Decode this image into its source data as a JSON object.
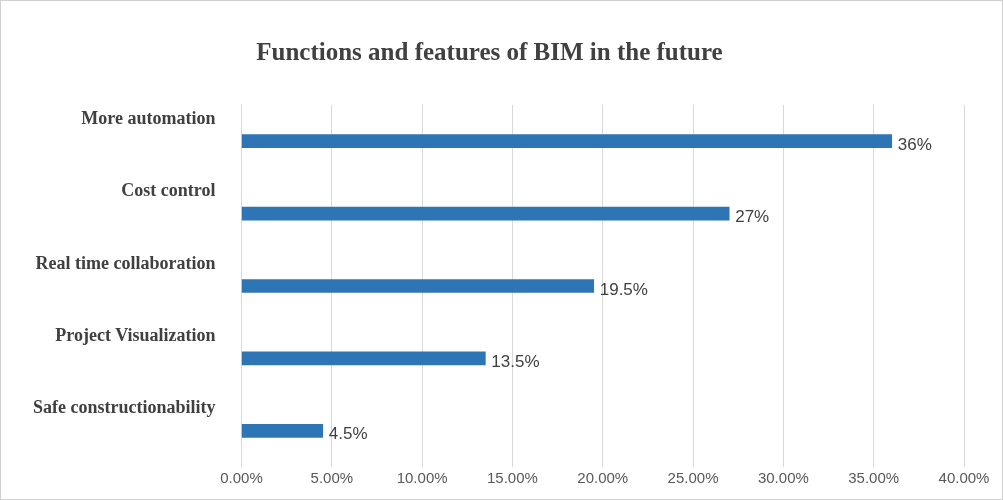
{
  "chart_data": {
    "type": "bar",
    "orientation": "horizontal",
    "title": "Functions and features of BIM in the future",
    "categories": [
      "More automation",
      "Cost control",
      "Real time collaboration",
      "Project Visualization",
      "Safe constructionability"
    ],
    "values": [
      36,
      27,
      19.5,
      13.5,
      4.5
    ],
    "value_labels": [
      "36%",
      "27%",
      "19.5%",
      "13.5%",
      "4.5%"
    ],
    "color": "#2e75b6",
    "xlim": [
      0,
      40
    ],
    "xticks": [
      {
        "value": 0,
        "label": "0.00%"
      },
      {
        "value": 5,
        "label": "5.00%"
      },
      {
        "value": 10,
        "label": "10.00%"
      },
      {
        "value": 15,
        "label": "15.00%"
      },
      {
        "value": 20,
        "label": "20.00%"
      },
      {
        "value": 25,
        "label": "25.00%"
      },
      {
        "value": 30,
        "label": "30.00%"
      },
      {
        "value": 35,
        "label": "35.00%"
      },
      {
        "value": 40,
        "label": "40.00%"
      }
    ],
    "grid": "x",
    "legend": false
  }
}
